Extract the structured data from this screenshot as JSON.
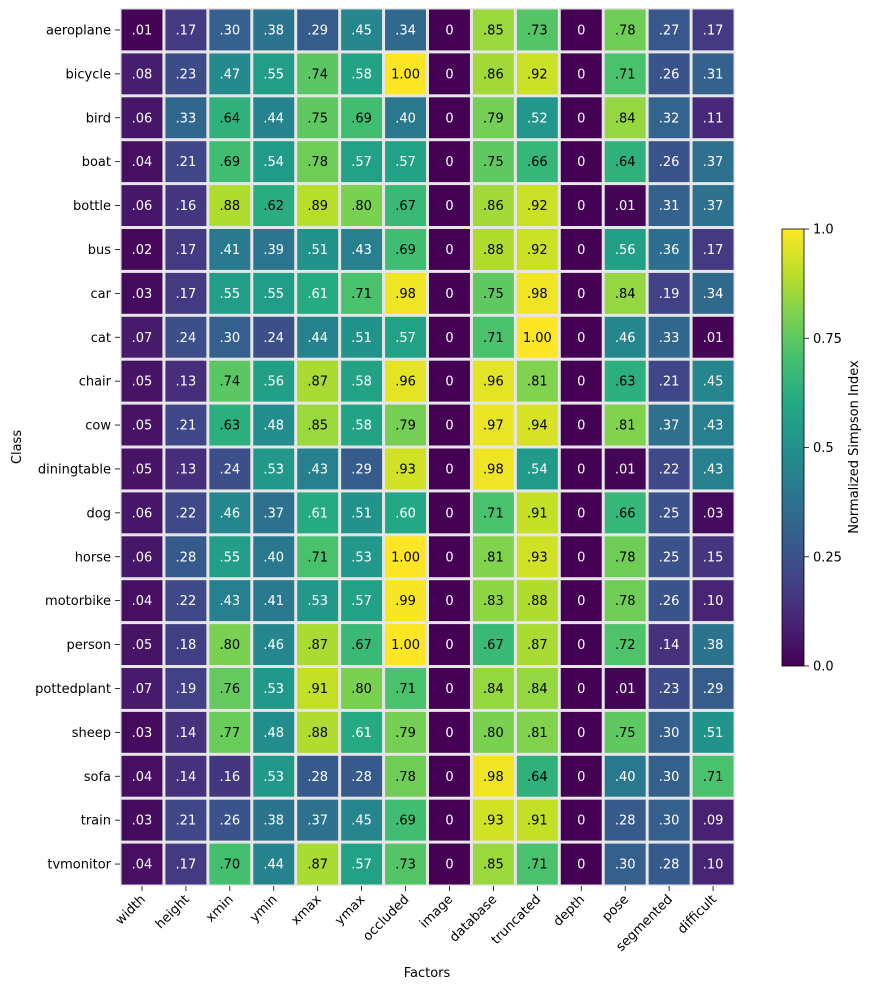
{
  "chart_data": {
    "type": "heatmap",
    "xlabel": "Factors",
    "ylabel": "Class",
    "x_categories": [
      "width",
      "height",
      "xmin",
      "ymin",
      "xmax",
      "ymax",
      "occluded",
      "image",
      "database",
      "truncated",
      "depth",
      "pose",
      "segmented",
      "difficult"
    ],
    "y_categories": [
      "aeroplane",
      "bicycle",
      "bird",
      "boat",
      "bottle",
      "bus",
      "car",
      "cat",
      "chair",
      "cow",
      "diningtable",
      "dog",
      "horse",
      "motorbike",
      "person",
      "pottedplant",
      "sheep",
      "sofa",
      "train",
      "tvmonitor"
    ],
    "values": [
      [
        0.01,
        0.17,
        0.3,
        0.38,
        0.29,
        0.45,
        0.34,
        0,
        0.85,
        0.73,
        0,
        0.78,
        0.27,
        0.17
      ],
      [
        0.08,
        0.23,
        0.47,
        0.55,
        0.74,
        0.58,
        1.0,
        0,
        0.86,
        0.92,
        0,
        0.71,
        0.26,
        0.31
      ],
      [
        0.06,
        0.33,
        0.64,
        0.44,
        0.75,
        0.69,
        0.4,
        0,
        0.79,
        0.52,
        0,
        0.84,
        0.32,
        0.11
      ],
      [
        0.04,
        0.21,
        0.69,
        0.54,
        0.78,
        0.57,
        0.57,
        0,
        0.75,
        0.66,
        0,
        0.64,
        0.26,
        0.37
      ],
      [
        0.06,
        0.16,
        0.88,
        0.62,
        0.89,
        0.8,
        0.67,
        0,
        0.86,
        0.92,
        0,
        0.01,
        0.31,
        0.37
      ],
      [
        0.02,
        0.17,
        0.41,
        0.39,
        0.51,
        0.43,
        0.69,
        0,
        0.88,
        0.92,
        0,
        0.56,
        0.36,
        0.17
      ],
      [
        0.03,
        0.17,
        0.55,
        0.55,
        0.61,
        0.71,
        0.98,
        0,
        0.75,
        0.98,
        0,
        0.84,
        0.19,
        0.34
      ],
      [
        0.07,
        0.24,
        0.3,
        0.24,
        0.44,
        0.51,
        0.57,
        0,
        0.71,
        1.0,
        0,
        0.46,
        0.33,
        0.01
      ],
      [
        0.05,
        0.13,
        0.74,
        0.56,
        0.87,
        0.58,
        0.96,
        0,
        0.96,
        0.81,
        0,
        0.63,
        0.21,
        0.45
      ],
      [
        0.05,
        0.21,
        0.63,
        0.48,
        0.85,
        0.58,
        0.79,
        0,
        0.97,
        0.94,
        0,
        0.81,
        0.37,
        0.43
      ],
      [
        0.05,
        0.13,
        0.24,
        0.53,
        0.43,
        0.29,
        0.93,
        0,
        0.98,
        0.54,
        0,
        0.01,
        0.22,
        0.43
      ],
      [
        0.06,
        0.22,
        0.46,
        0.37,
        0.61,
        0.51,
        0.6,
        0,
        0.71,
        0.91,
        0,
        0.66,
        0.25,
        0.03
      ],
      [
        0.06,
        0.28,
        0.55,
        0.4,
        0.71,
        0.53,
        1.0,
        0,
        0.81,
        0.93,
        0,
        0.78,
        0.25,
        0.15
      ],
      [
        0.04,
        0.22,
        0.43,
        0.41,
        0.53,
        0.57,
        0.99,
        0,
        0.83,
        0.88,
        0,
        0.78,
        0.26,
        0.1
      ],
      [
        0.05,
        0.18,
        0.8,
        0.46,
        0.87,
        0.67,
        1.0,
        0,
        0.67,
        0.87,
        0,
        0.72,
        0.14,
        0.38
      ],
      [
        0.07,
        0.19,
        0.76,
        0.53,
        0.91,
        0.8,
        0.71,
        0,
        0.84,
        0.84,
        0,
        0.01,
        0.23,
        0.29
      ],
      [
        0.03,
        0.14,
        0.77,
        0.48,
        0.88,
        0.61,
        0.79,
        0,
        0.8,
        0.81,
        0,
        0.75,
        0.3,
        0.51
      ],
      [
        0.04,
        0.14,
        0.16,
        0.53,
        0.28,
        0.28,
        0.78,
        0,
        0.98,
        0.64,
        0,
        0.4,
        0.3,
        0.71
      ],
      [
        0.03,
        0.21,
        0.26,
        0.38,
        0.37,
        0.45,
        0.69,
        0,
        0.93,
        0.91,
        0,
        0.28,
        0.3,
        0.09
      ],
      [
        0.04,
        0.17,
        0.7,
        0.44,
        0.87,
        0.57,
        0.73,
        0,
        0.85,
        0.71,
        0,
        0.3,
        0.28,
        0.1
      ]
    ],
    "cell_labels": [
      [
        ".01",
        ".17",
        ".30",
        ".38",
        ".29",
        ".45",
        ".34",
        "0",
        ".85",
        ".73",
        "0",
        ".78",
        ".27",
        ".17"
      ],
      [
        ".08",
        ".23",
        ".47",
        ".55",
        ".74",
        ".58",
        "1.00",
        "0",
        ".86",
        ".92",
        "0",
        ".71",
        ".26",
        ".31"
      ],
      [
        ".06",
        ".33",
        ".64",
        ".44",
        ".75",
        ".69",
        ".40",
        "0",
        ".79",
        ".52",
        "0",
        ".84",
        ".32",
        ".11"
      ],
      [
        ".04",
        ".21",
        ".69",
        ".54",
        ".78",
        ".57",
        ".57",
        "0",
        ".75",
        ".66",
        "0",
        ".64",
        ".26",
        ".37"
      ],
      [
        ".06",
        ".16",
        ".88",
        ".62",
        ".89",
        ".80",
        ".67",
        "0",
        ".86",
        ".92",
        "0",
        ".01",
        ".31",
        ".37"
      ],
      [
        ".02",
        ".17",
        ".41",
        ".39",
        ".51",
        ".43",
        ".69",
        "0",
        ".88",
        ".92",
        "0",
        ".56",
        ".36",
        ".17"
      ],
      [
        ".03",
        ".17",
        ".55",
        ".55",
        ".61",
        ".71",
        ".98",
        "0",
        ".75",
        ".98",
        "0",
        ".84",
        ".19",
        ".34"
      ],
      [
        ".07",
        ".24",
        ".30",
        ".24",
        ".44",
        ".51",
        ".57",
        "0",
        ".71",
        "1.00",
        "0",
        ".46",
        ".33",
        ".01"
      ],
      [
        ".05",
        ".13",
        ".74",
        ".56",
        ".87",
        ".58",
        ".96",
        "0",
        ".96",
        ".81",
        "0",
        ".63",
        ".21",
        ".45"
      ],
      [
        ".05",
        ".21",
        ".63",
        ".48",
        ".85",
        ".58",
        ".79",
        "0",
        ".97",
        ".94",
        "0",
        ".81",
        ".37",
        ".43"
      ],
      [
        ".05",
        ".13",
        ".24",
        ".53",
        ".43",
        ".29",
        ".93",
        "0",
        ".98",
        ".54",
        "0",
        ".01",
        ".22",
        ".43"
      ],
      [
        ".06",
        ".22",
        ".46",
        ".37",
        ".61",
        ".51",
        ".60",
        "0",
        ".71",
        ".91",
        "0",
        ".66",
        ".25",
        ".03"
      ],
      [
        ".06",
        ".28",
        ".55",
        ".40",
        ".71",
        ".53",
        "1.00",
        "0",
        ".81",
        ".93",
        "0",
        ".78",
        ".25",
        ".15"
      ],
      [
        ".04",
        ".22",
        ".43",
        ".41",
        ".53",
        ".57",
        ".99",
        "0",
        ".83",
        ".88",
        "0",
        ".78",
        ".26",
        ".10"
      ],
      [
        ".05",
        ".18",
        ".80",
        ".46",
        ".87",
        ".67",
        "1.00",
        "0",
        ".67",
        ".87",
        "0",
        ".72",
        ".14",
        ".38"
      ],
      [
        ".07",
        ".19",
        ".76",
        ".53",
        ".91",
        ".80",
        ".71",
        "0",
        ".84",
        ".84",
        "0",
        ".01",
        ".23",
        ".29"
      ],
      [
        ".03",
        ".14",
        ".77",
        ".48",
        ".88",
        ".61",
        ".79",
        "0",
        ".80",
        ".81",
        "0",
        ".75",
        ".30",
        ".51"
      ],
      [
        ".04",
        ".14",
        ".16",
        ".53",
        ".28",
        ".28",
        ".78",
        "0",
        ".98",
        ".64",
        "0",
        ".40",
        ".30",
        ".71"
      ],
      [
        ".03",
        ".21",
        ".26",
        ".38",
        ".37",
        ".45",
        ".69",
        "0",
        ".93",
        ".91",
        "0",
        ".28",
        ".30",
        ".09"
      ],
      [
        ".04",
        ".17",
        ".70",
        ".44",
        ".87",
        ".57",
        ".73",
        "0",
        ".85",
        ".71",
        "0",
        ".30",
        ".28",
        ".10"
      ]
    ],
    "colormap": "viridis",
    "grid_color": "#e6e6e6",
    "colorbar": {
      "label": "Normalized Simpson Index",
      "range": [
        0,
        1
      ],
      "ticks": [
        0,
        0.25,
        0.5,
        0.75,
        1
      ],
      "tick_labels": [
        "0.0",
        "0.25",
        "0.5",
        "0.75",
        "1.0"
      ]
    }
  }
}
